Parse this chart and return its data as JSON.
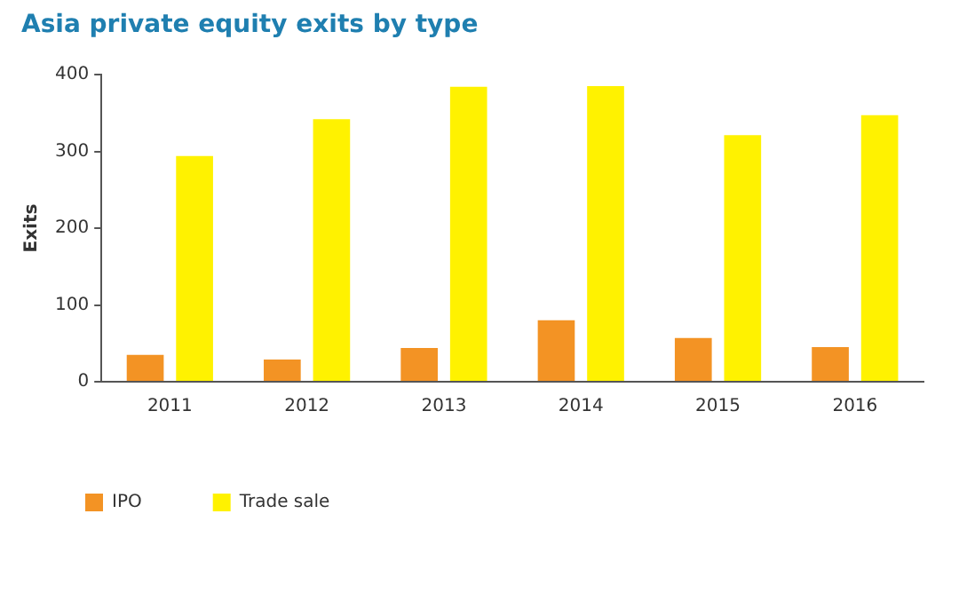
{
  "chart_data": {
    "type": "bar",
    "title": "Asia private equity exits by type",
    "ylabel": "Exits",
    "categories": [
      "2011",
      "2012",
      "2013",
      "2014",
      "2015",
      "2016"
    ],
    "series": [
      {
        "name": "IPO",
        "color": "#f39324",
        "values": [
          35,
          29,
          44,
          80,
          57,
          45
        ]
      },
      {
        "name": "Trade sale",
        "color": "#fff200",
        "values": [
          294,
          342,
          384,
          385,
          321,
          347
        ]
      }
    ],
    "ylim": [
      0,
      400
    ],
    "yticks": [
      0,
      100,
      200,
      300,
      400
    ],
    "grid": false,
    "legend": "bottom left"
  }
}
